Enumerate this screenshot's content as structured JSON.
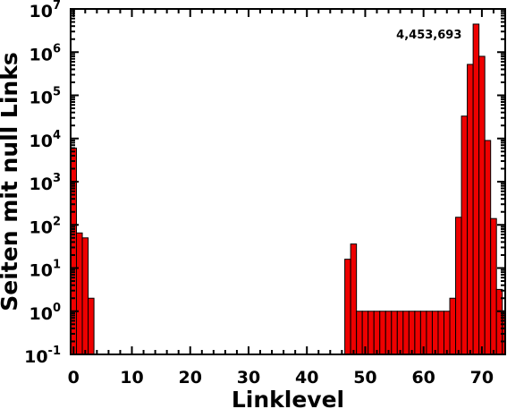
{
  "chart_data": {
    "type": "bar",
    "xlabel": "Linklevel",
    "ylabel": "Seiten mit null Links",
    "yscale": "log",
    "ylim": [
      0.1,
      10000000
    ],
    "xlim": [
      -0.5,
      74
    ],
    "x_ticks": [
      0,
      10,
      20,
      30,
      40,
      50,
      60,
      70
    ],
    "x_tick_labels": [
      "0",
      "10",
      "20",
      "30",
      "40",
      "50",
      "60",
      "70"
    ],
    "y_ticks": [
      {
        "base": "10",
        "exp": "-1",
        "value": 0.1
      },
      {
        "base": "10",
        "exp": "0",
        "value": 1
      },
      {
        "base": "10",
        "exp": "1",
        "value": 10
      },
      {
        "base": "10",
        "exp": "2",
        "value": 100
      },
      {
        "base": "10",
        "exp": "3",
        "value": 1000
      },
      {
        "base": "10",
        "exp": "4",
        "value": 10000
      },
      {
        "base": "10",
        "exp": "5",
        "value": 100000
      },
      {
        "base": "10",
        "exp": "6",
        "value": 1000000
      },
      {
        "base": "10",
        "exp": "7",
        "value": 10000000
      }
    ],
    "grid": false,
    "bar_color": "#ee0000",
    "x": [
      0,
      1,
      2,
      3,
      47,
      48,
      49,
      50,
      51,
      52,
      53,
      54,
      55,
      56,
      57,
      58,
      59,
      60,
      61,
      62,
      63,
      64,
      65,
      66,
      67,
      68,
      69,
      70,
      71,
      72,
      73,
      74
    ],
    "values": [
      6000,
      65,
      50,
      2,
      16,
      36,
      1,
      1,
      1,
      1,
      1,
      1,
      1,
      1,
      1,
      1,
      1,
      1,
      1,
      1,
      1,
      1,
      2,
      150,
      33000,
      520000,
      4453693,
      800000,
      9000,
      140,
      3.2,
      1
    ],
    "annotations": [
      {
        "text": "4,453,693",
        "x": 69,
        "y": 4453693
      }
    ]
  }
}
